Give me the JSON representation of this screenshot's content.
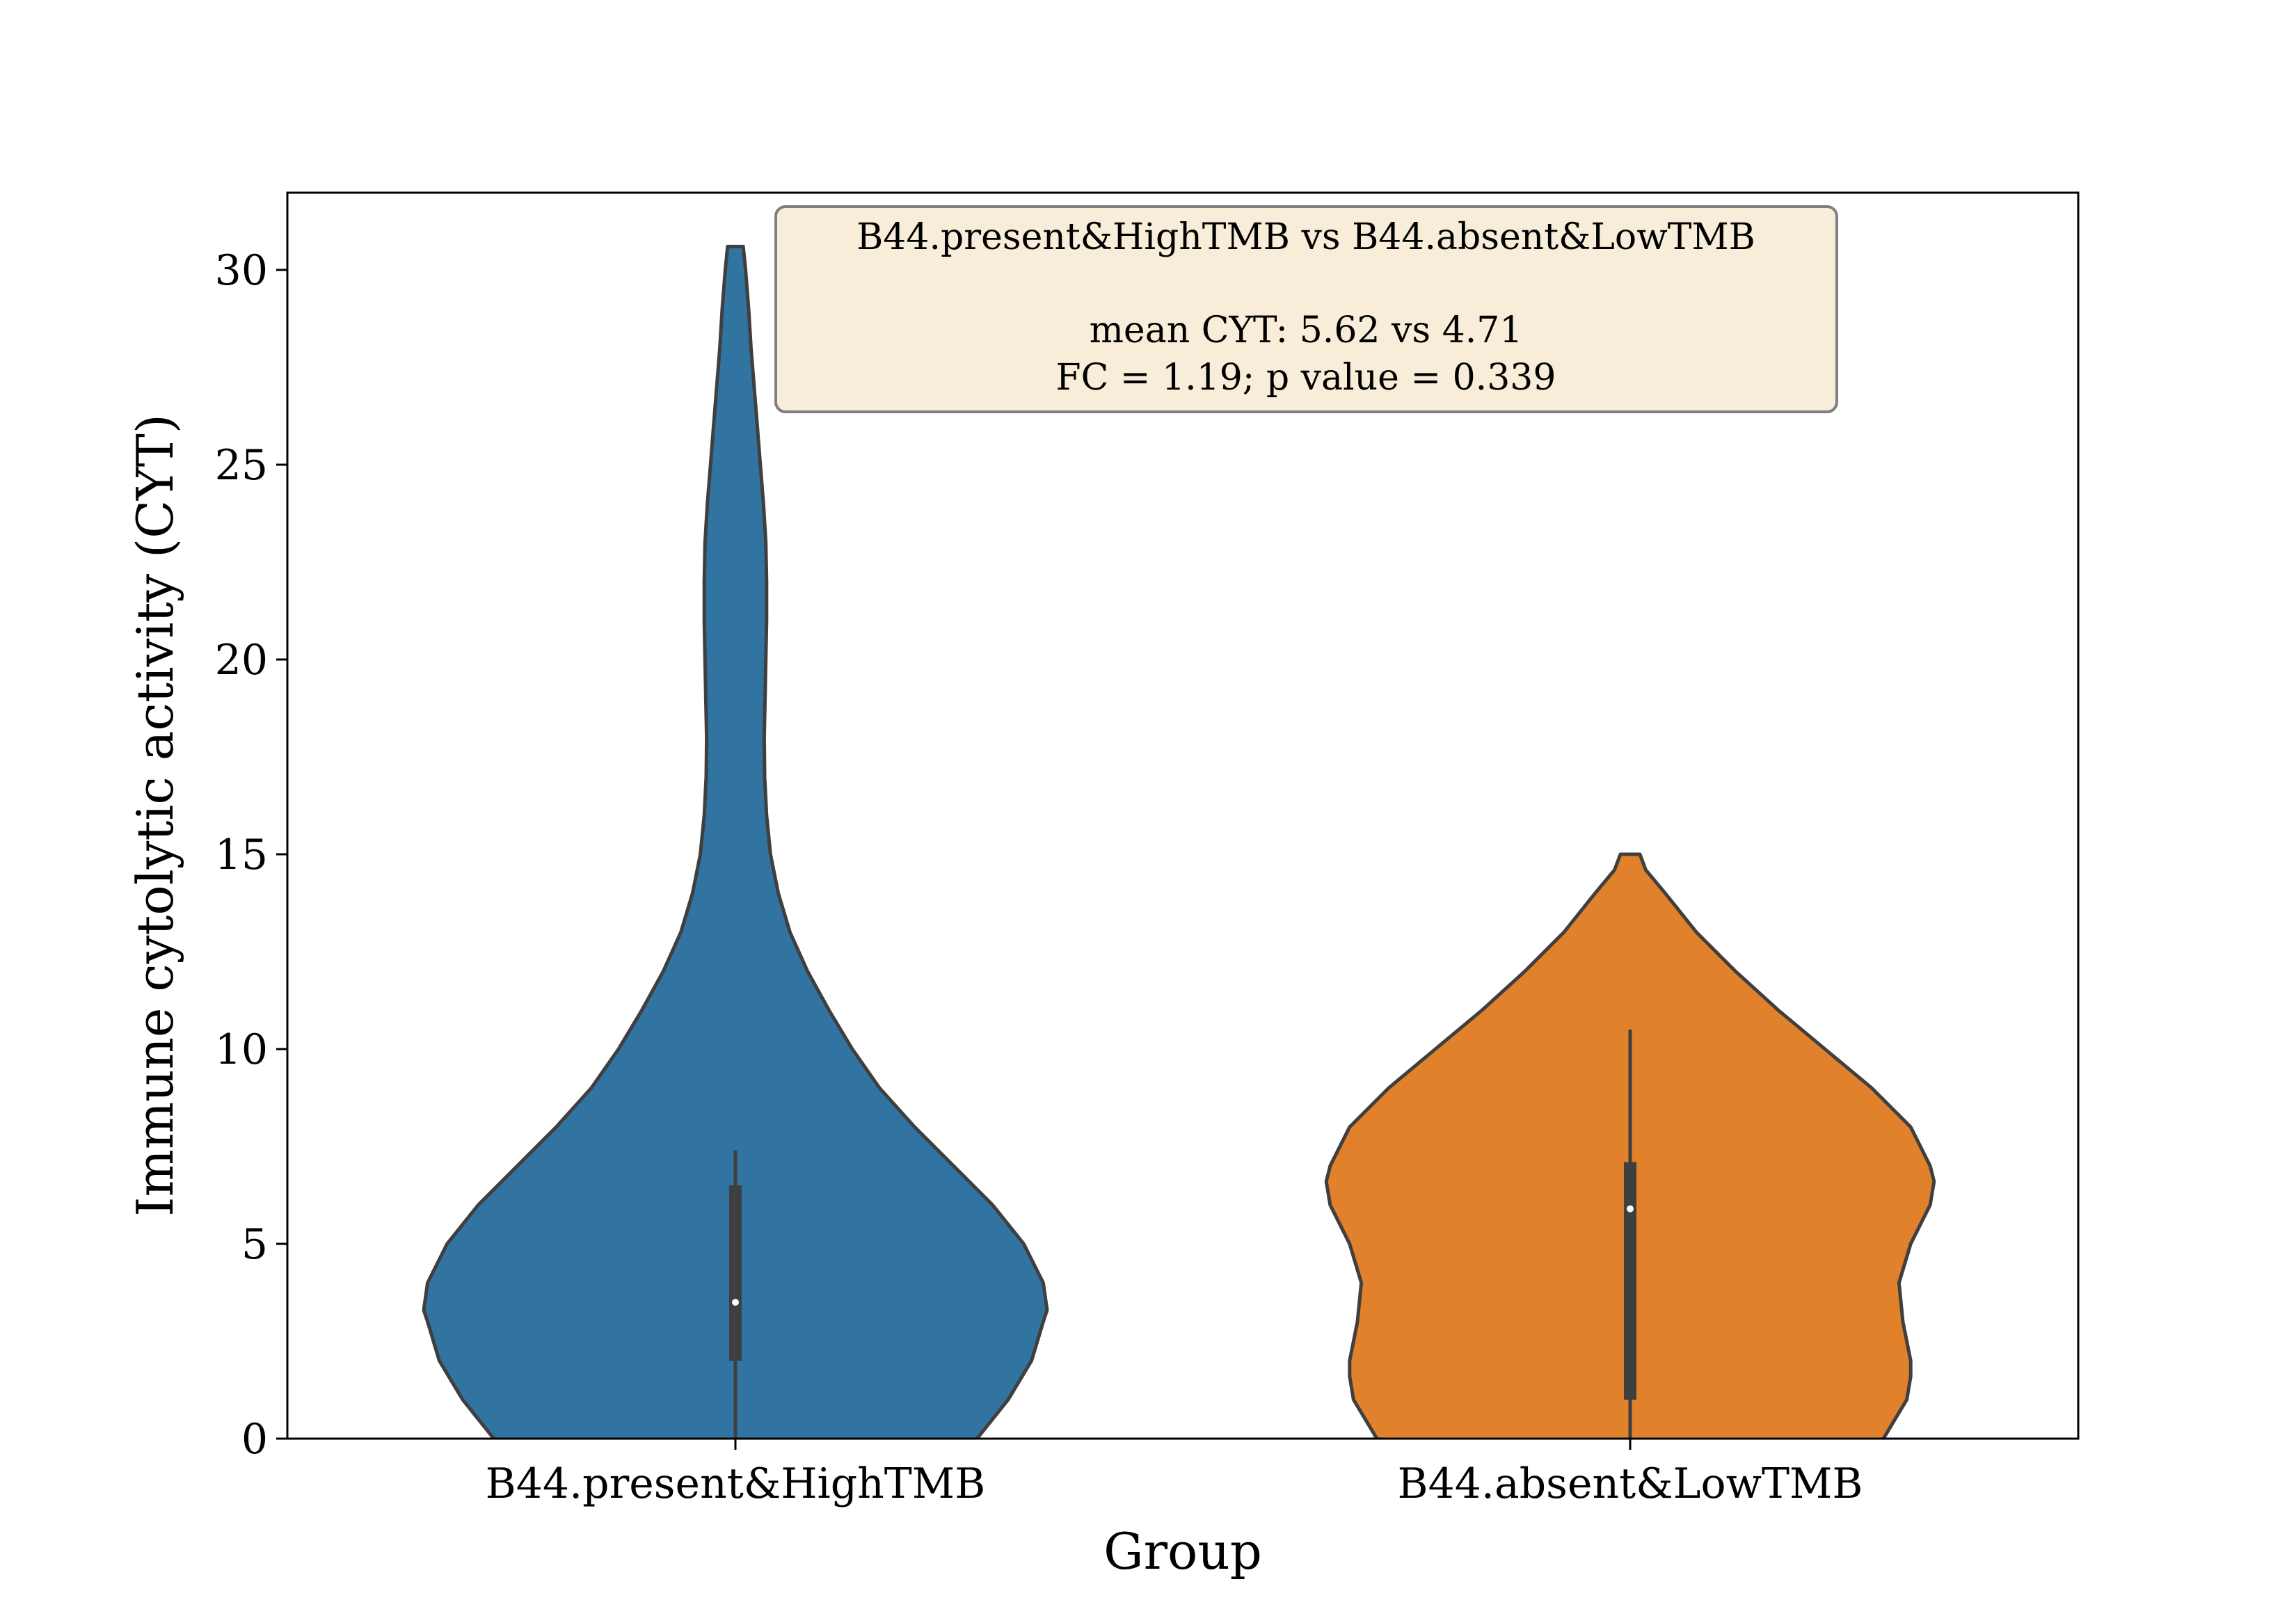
{
  "chart_data": {
    "type": "violin",
    "title": "",
    "xlabel": "Group",
    "ylabel": "Immune cytolytic activity (CYT)",
    "ylim": [
      0,
      32
    ],
    "yticks": [
      0,
      5,
      10,
      15,
      20,
      25,
      30
    ],
    "categories": [
      "B44.present&HighTMB",
      "B44.absent&LowTMB"
    ],
    "grid": false,
    "legend": "none",
    "series": [
      {
        "category": "B44.present&HighTMB",
        "color": "#3274a1",
        "median": 3.5,
        "q1": 2.0,
        "q3": 6.5,
        "whisker_low": 0,
        "whisker_high": 7.4,
        "profile": [
          [
            -1.5,
            0.0
          ],
          [
            0,
            0.62
          ],
          [
            1,
            0.7
          ],
          [
            2,
            0.76
          ],
          [
            3,
            0.79
          ],
          [
            3.3,
            0.8
          ],
          [
            4,
            0.79
          ],
          [
            5,
            0.74
          ],
          [
            6,
            0.66
          ],
          [
            7,
            0.56
          ],
          [
            8,
            0.46
          ],
          [
            9,
            0.37
          ],
          [
            10,
            0.3
          ],
          [
            11,
            0.24
          ],
          [
            12,
            0.185
          ],
          [
            13,
            0.14
          ],
          [
            14,
            0.11
          ],
          [
            15,
            0.09
          ],
          [
            16,
            0.08
          ],
          [
            17,
            0.075
          ],
          [
            18,
            0.074
          ],
          [
            19,
            0.076
          ],
          [
            20,
            0.078
          ],
          [
            21,
            0.08
          ],
          [
            22,
            0.08
          ],
          [
            23,
            0.078
          ],
          [
            24,
            0.072
          ],
          [
            25,
            0.064
          ],
          [
            26,
            0.056
          ],
          [
            27,
            0.048
          ],
          [
            28,
            0.04
          ],
          [
            29,
            0.034
          ],
          [
            30,
            0.026
          ],
          [
            30.6,
            0.02
          ]
        ]
      },
      {
        "category": "B44.absent&LowTMB",
        "color": "#e1812c",
        "median": 5.9,
        "q1": 1.0,
        "q3": 7.1,
        "whisker_low": 0,
        "whisker_high": 10.5,
        "profile": [
          [
            -1.8,
            0.0
          ],
          [
            0,
            0.65
          ],
          [
            1,
            0.71
          ],
          [
            1.6,
            0.72
          ],
          [
            2,
            0.72
          ],
          [
            2.5,
            0.71
          ],
          [
            3,
            0.7
          ],
          [
            4,
            0.69
          ],
          [
            5,
            0.72
          ],
          [
            6,
            0.77
          ],
          [
            6.6,
            0.78
          ],
          [
            7,
            0.77
          ],
          [
            8,
            0.72
          ],
          [
            9,
            0.62
          ],
          [
            10,
            0.5
          ],
          [
            11,
            0.38
          ],
          [
            12,
            0.27
          ],
          [
            13,
            0.17
          ],
          [
            14,
            0.09
          ],
          [
            14.6,
            0.04
          ],
          [
            15,
            0.025
          ]
        ]
      }
    ],
    "annotation": {
      "line1": "B44.present&HighTMB vs B44.absent&LowTMB",
      "line2": "mean CYT: 5.62 vs 4.71",
      "line3": "FC = 1.19; p value = 0.339",
      "background": "#f8edd8"
    }
  }
}
